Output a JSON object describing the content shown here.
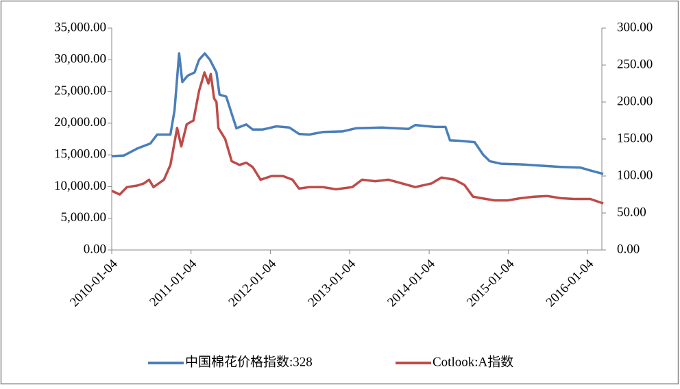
{
  "chart_data": {
    "type": "line",
    "xlim": [
      "2010-01-04",
      "2016-03-15"
    ],
    "xticks": [
      "2010-01-04",
      "2011-01-04",
      "2012-01-04",
      "2013-01-04",
      "2014-01-04",
      "2015-01-04",
      "2016-01-04"
    ],
    "ylim": [
      0,
      35000
    ],
    "yticks": [
      {
        "value": 0,
        "label": "0.00"
      },
      {
        "value": 5000,
        "label": "5,000.00"
      },
      {
        "value": 10000,
        "label": "10,000.00"
      },
      {
        "value": 15000,
        "label": "15,000.00"
      },
      {
        "value": 20000,
        "label": "20,000.00"
      },
      {
        "value": 25000,
        "label": "25,000.00"
      },
      {
        "value": 30000,
        "label": "30,000.00"
      },
      {
        "value": 35000,
        "label": "35,000.00"
      }
    ],
    "y2lim": [
      0,
      300
    ],
    "y2ticks": [
      {
        "value": 0,
        "label": "0.00"
      },
      {
        "value": 50,
        "label": "50.00"
      },
      {
        "value": 100,
        "label": "100.00"
      },
      {
        "value": 150,
        "label": "150.00"
      },
      {
        "value": 200,
        "label": "200.00"
      },
      {
        "value": 250,
        "label": "250.00"
      },
      {
        "value": 300,
        "label": "300.00"
      }
    ],
    "legend": "bottom",
    "series": [
      {
        "name": "中国棉花价格指数:328",
        "color": "#4a7ebb",
        "axis": "y",
        "x": [
          "2010-01-04",
          "2010-03-01",
          "2010-05-01",
          "2010-07-01",
          "2010-08-01",
          "2010-10-01",
          "2010-10-20",
          "2010-11-10",
          "2010-11-25",
          "2010-12-20",
          "2011-01-20",
          "2011-02-10",
          "2011-03-08",
          "2011-04-01",
          "2011-05-01",
          "2011-05-15",
          "2011-06-15",
          "2011-07-10",
          "2011-08-01",
          "2011-09-15",
          "2011-10-15",
          "2011-12-01",
          "2012-02-01",
          "2012-04-01",
          "2012-05-15",
          "2012-07-01",
          "2012-09-01",
          "2012-12-01",
          "2013-02-01",
          "2013-06-01",
          "2013-10-01",
          "2013-11-01",
          "2014-02-01",
          "2014-03-20",
          "2014-04-10",
          "2014-06-01",
          "2014-08-01",
          "2014-09-10",
          "2014-10-10",
          "2014-12-01",
          "2015-03-01",
          "2015-06-01",
          "2015-09-01",
          "2015-12-01",
          "2016-01-20",
          "2016-03-15"
        ],
        "values": [
          14800,
          14900,
          16000,
          16800,
          18200,
          18200,
          22000,
          31000,
          26500,
          27500,
          28000,
          30000,
          31000,
          30000,
          28000,
          24500,
          24200,
          21500,
          19200,
          19800,
          19000,
          19000,
          19500,
          19300,
          18300,
          18200,
          18600,
          18700,
          19200,
          19300,
          19100,
          19700,
          19400,
          19400,
          17300,
          17200,
          17000,
          15000,
          14000,
          13600,
          13500,
          13300,
          13100,
          13000,
          12500,
          12000
        ]
      },
      {
        "name": "Cotlook:A指数",
        "color": "#be4b48",
        "axis": "y2",
        "x": [
          "2010-01-04",
          "2010-02-10",
          "2010-03-15",
          "2010-05-01",
          "2010-06-01",
          "2010-06-25",
          "2010-07-15",
          "2010-09-01",
          "2010-10-01",
          "2010-11-01",
          "2010-11-20",
          "2010-12-15",
          "2011-01-15",
          "2011-02-10",
          "2011-03-07",
          "2011-03-25",
          "2011-04-05",
          "2011-04-20",
          "2011-05-01",
          "2011-05-10",
          "2011-06-10",
          "2011-07-10",
          "2011-08-15",
          "2011-09-15",
          "2011-10-15",
          "2011-11-20",
          "2012-01-10",
          "2012-03-01",
          "2012-04-15",
          "2012-05-15",
          "2012-07-01",
          "2012-09-01",
          "2012-11-01",
          "2013-01-15",
          "2013-03-01",
          "2013-05-01",
          "2013-07-01",
          "2013-09-01",
          "2013-11-01",
          "2014-01-15",
          "2014-03-01",
          "2014-05-01",
          "2014-06-15",
          "2014-07-25",
          "2014-09-01",
          "2014-11-01",
          "2015-01-01",
          "2015-03-01",
          "2015-05-01",
          "2015-07-01",
          "2015-09-01",
          "2015-11-01",
          "2016-01-15",
          "2016-03-15"
        ],
        "values": [
          80,
          75,
          85,
          87,
          90,
          95,
          85,
          95,
          115,
          165,
          140,
          170,
          175,
          215,
          240,
          225,
          238,
          205,
          200,
          165,
          150,
          120,
          115,
          118,
          112,
          95,
          100,
          100,
          95,
          83,
          85,
          85,
          82,
          85,
          95,
          93,
          95,
          90,
          85,
          90,
          98,
          95,
          88,
          72,
          70,
          67,
          67,
          70,
          72,
          73,
          70,
          69,
          69,
          63
        ]
      }
    ]
  }
}
